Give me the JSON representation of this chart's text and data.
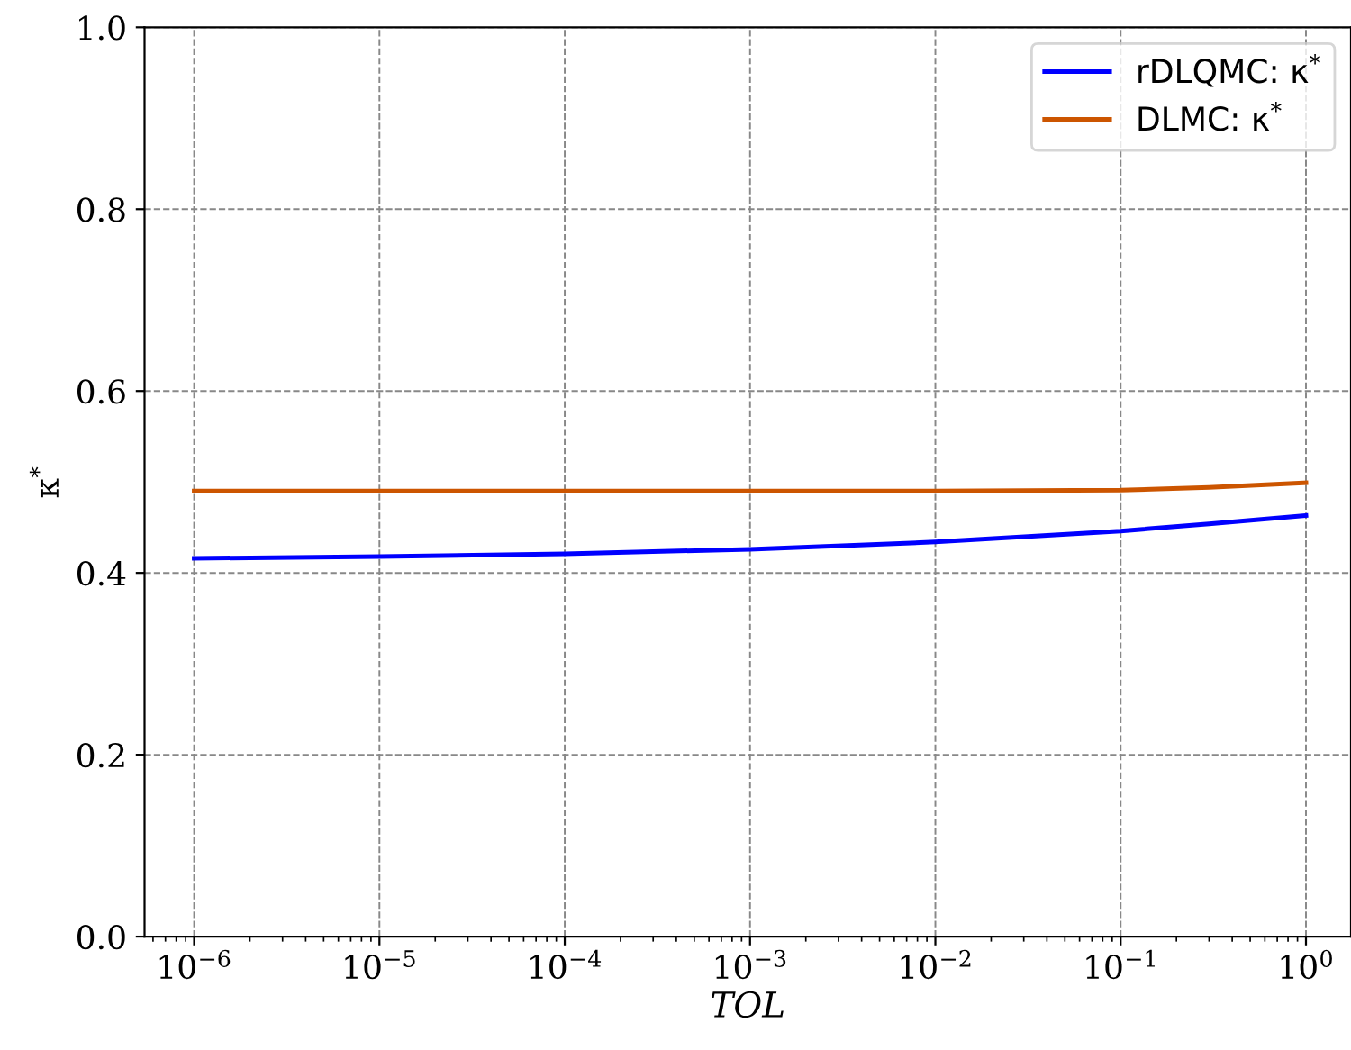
{
  "chart_data": {
    "type": "line",
    "xlabel": "TOL",
    "ylabel": "κ$^{*}$",
    "log": "x",
    "grid": true,
    "legend": "top right",
    "marker": "none",
    "line_style": "solid",
    "xlim": [
      5.4e-07,
      1.75
    ],
    "ylim": [
      0.0,
      1.0
    ],
    "xticks": [
      {
        "value": 1e-06,
        "label": "10$^{−6}$"
      },
      {
        "value": 1e-05,
        "label": "10$^{−5}$"
      },
      {
        "value": 0.0001,
        "label": "10$^{−4}$"
      },
      {
        "value": 0.001,
        "label": "10$^{−3}$"
      },
      {
        "value": 0.01,
        "label": "10$^{−2}$"
      },
      {
        "value": 0.1,
        "label": "10$^{−1}$"
      },
      {
        "value": 1,
        "label": "10$^{0}$"
      }
    ],
    "yticks": [
      {
        "value": 0,
        "label": "0.0"
      },
      {
        "value": 0.2,
        "label": "0.2"
      },
      {
        "value": 0.4,
        "label": "0.4"
      },
      {
        "value": 0.6,
        "label": "0.6"
      },
      {
        "value": 0.8,
        "label": "0.8"
      },
      {
        "value": 1.0,
        "label": "1.0"
      }
    ],
    "series": [
      {
        "name": "rDLQMC: κ$^{*}$",
        "color": "#0000ff",
        "x": [
          1e-06,
          1e-05,
          0.0001,
          0.001,
          0.01,
          0.1,
          0.3,
          1
        ],
        "values": [
          0.416,
          0.418,
          0.421,
          0.426,
          0.434,
          0.446,
          0.454,
          0.463
        ]
      },
      {
        "name": "DLMC: κ$^{*}$",
        "color": "#cc5500",
        "x": [
          1e-06,
          1e-05,
          0.0001,
          0.001,
          0.01,
          0.1,
          0.3,
          1
        ],
        "values": [
          0.49,
          0.49,
          0.49,
          0.49,
          0.49,
          0.491,
          0.494,
          0.499
        ]
      }
    ]
  }
}
